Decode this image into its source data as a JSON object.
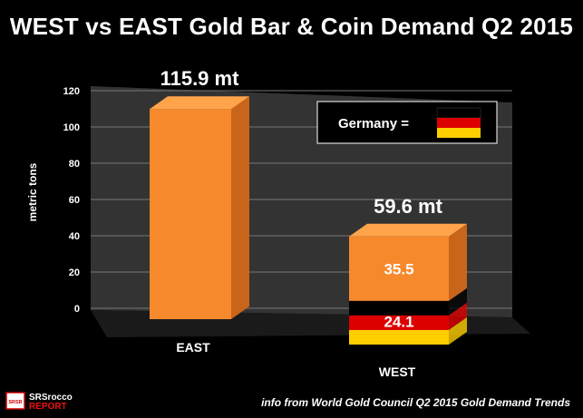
{
  "title": "WEST vs EAST Gold Bar & Coin Demand Q2 2015",
  "source": "info from World Gold Council Q2 2015 Gold Demand Trends",
  "logo": {
    "line1": "SRSrocco",
    "line2": "REPORT",
    "badge": "SRSR"
  },
  "legend": {
    "label": "Germany =",
    "flag_colors": [
      "#000000",
      "#dd0000",
      "#ffce00"
    ]
  },
  "chart_data": {
    "type": "bar",
    "stacked": true,
    "ylabel": "metric tons",
    "ylim": [
      0,
      120
    ],
    "yticks": [
      0,
      20,
      40,
      60,
      80,
      100,
      120
    ],
    "categories": [
      "EAST",
      "WEST"
    ],
    "series": [
      {
        "name": "Germany",
        "values": [
          0,
          24.1
        ],
        "segment_labels": [
          "",
          "24.1"
        ]
      },
      {
        "values": [
          115.9,
          35.5
        ],
        "segment_labels": [
          "",
          "35.5"
        ]
      }
    ],
    "totals": [
      "115.9 mt",
      "59.6 mt"
    ],
    "grid": true,
    "colors": {
      "bar": "#f7892d",
      "bar_top": "#ffa44a",
      "bar_side": "#c8651a",
      "flag_black": "#000000",
      "flag_red": "#dd0000",
      "flag_gold": "#ffce00",
      "back_wall": "#333333",
      "floor": "#1a1a1a",
      "grid": "#777777"
    }
  }
}
